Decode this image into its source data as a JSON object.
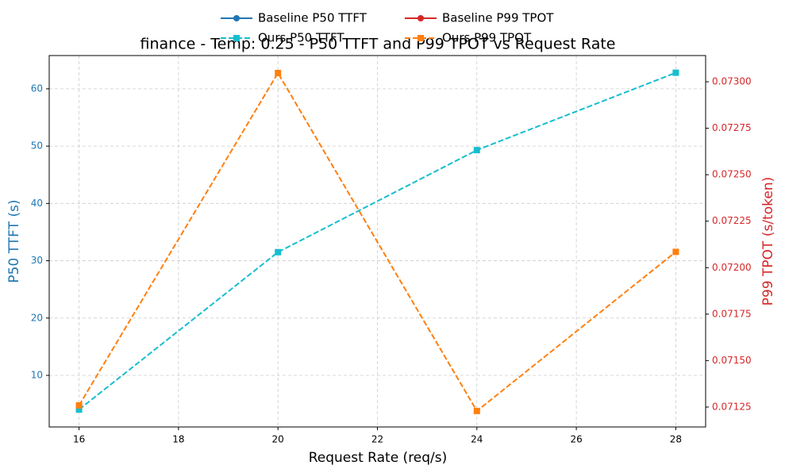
{
  "chart_data": {
    "type": "line",
    "title": "finance - Temp: 0.25 - P50 TTFT and P99 TPOT vs Request Rate",
    "x_label": "Request Rate (req/s)",
    "y_label": "P50 TTFT (s)",
    "y2_label": "P99 TPOT (s/token)",
    "x": [
      16,
      20,
      24,
      28
    ],
    "series": [
      {
        "name": "Baseline P50 TTFT",
        "color": "#1f77b4",
        "values": [
          null,
          null,
          null,
          null
        ]
      },
      {
        "name": "Ours P50 TTFT",
        "color": "#17becf",
        "values": [
          4.04,
          31.5,
          49.3,
          62.8
        ]
      },
      {
        "name": "Baseline P99 TPOT",
        "color": "#d62728",
        "axis": "y2",
        "values": [
          null,
          null,
          null,
          null
        ]
      },
      {
        "name": "Ours P99 TPOT",
        "color": "#ff7f0e",
        "axis": "y2",
        "values": [
          0.071259,
          0.073047,
          0.071229,
          0.072085
        ]
      }
    ],
    "xlim": [
      15.4,
      28.6
    ],
    "xticks": [
      16,
      18,
      20,
      22,
      24,
      26,
      28
    ],
    "ylim": [
      1.0,
      65.8
    ],
    "yticks": [
      10,
      20,
      30,
      40,
      50,
      60
    ],
    "y2lim": [
      0.071143,
      0.073141
    ],
    "y2ticks": [
      {
        "value": 0.07125,
        "label": "0.07125"
      },
      {
        "value": 0.0715,
        "label": "0.07150"
      },
      {
        "value": 0.07175,
        "label": "0.07175"
      },
      {
        "value": 0.072,
        "label": "0.07200"
      },
      {
        "value": 0.07225,
        "label": "0.07225"
      },
      {
        "value": 0.0725,
        "label": "0.07250"
      },
      {
        "value": 0.07275,
        "label": "0.07275"
      },
      {
        "value": 0.073,
        "label": "0.07300"
      }
    ],
    "grid": true,
    "legend": "top"
  }
}
